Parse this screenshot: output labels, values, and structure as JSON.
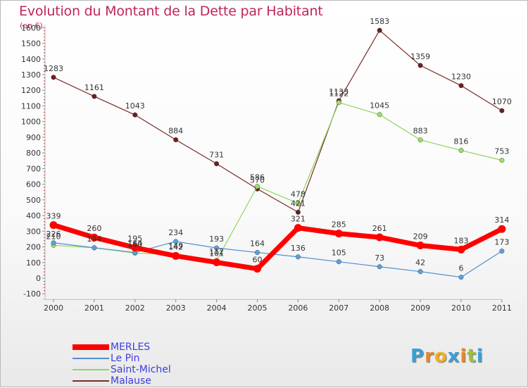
{
  "title": "Evolution du Montant de la Dette par Habitant",
  "subtitle": "(en €)",
  "brand": {
    "text": "Proxiti",
    "letter_colors": [
      "#3aa0d8",
      "#e8862a",
      "#f0b020",
      "#3aa0d8",
      "#e8862a",
      "#9bc23a",
      "#3aa0d8"
    ]
  },
  "chart_data": {
    "type": "line",
    "title": "Evolution du Montant de la Dette par Habitant",
    "subtitle": "(en €)",
    "x": [
      "2000",
      "2001",
      "2002",
      "2003",
      "2004",
      "2005",
      "2006",
      "2007",
      "2008",
      "2009",
      "2010",
      "2011"
    ],
    "ylim": [
      -100,
      1600
    ],
    "yticks": [
      -100,
      0,
      100,
      200,
      300,
      400,
      500,
      600,
      700,
      800,
      900,
      1000,
      1100,
      1200,
      1300,
      1400,
      1500,
      1600
    ],
    "grid": false,
    "legend_position": "bottom-left",
    "series": [
      {
        "name": "MERLES",
        "color": "#ff0000",
        "values": [
          339,
          260,
          195,
          142,
          101,
          60,
          321,
          285,
          261,
          209,
          183,
          314
        ]
      },
      {
        "name": "Le Pin",
        "color": "#4f8fcf",
        "values": [
          226,
          194,
          164,
          234,
          193,
          164,
          136,
          105,
          73,
          42,
          6,
          173
        ]
      },
      {
        "name": "Saint-Michel",
        "color": "#8fd65a",
        "values": [
          210,
          194,
          160,
          149,
          112,
          586,
          478,
          1122,
          1045,
          883,
          816,
          753
        ]
      },
      {
        "name": "Malause",
        "color": "#7a2a2a",
        "values": [
          1283,
          1161,
          1043,
          884,
          731,
          570,
          421,
          1133,
          1583,
          1359,
          1230,
          1070
        ]
      }
    ],
    "data_labels": [
      {
        "series": "Malause",
        "values": [
          1283,
          1161,
          1043,
          884,
          731,
          570,
          421,
          1133,
          1583,
          1359,
          1230,
          1070
        ]
      },
      {
        "series": "Saint-Michel",
        "values": [
          null,
          null,
          null,
          null,
          null,
          586,
          478,
          1122,
          1045,
          883,
          816,
          753
        ]
      },
      {
        "series": "MERLES",
        "values": [
          339,
          260,
          195,
          142,
          101,
          60,
          321,
          285,
          261,
          209,
          183,
          314
        ]
      },
      {
        "series": "Le Pin",
        "values": [
          226,
          194,
          164,
          234,
          193,
          164,
          136,
          105,
          73,
          42,
          6,
          173
        ]
      },
      {
        "series": "Saint-Michel",
        "values": [
          210,
          194,
          160,
          149,
          112,
          null,
          null,
          null,
          null,
          null,
          null,
          null
        ]
      }
    ]
  }
}
